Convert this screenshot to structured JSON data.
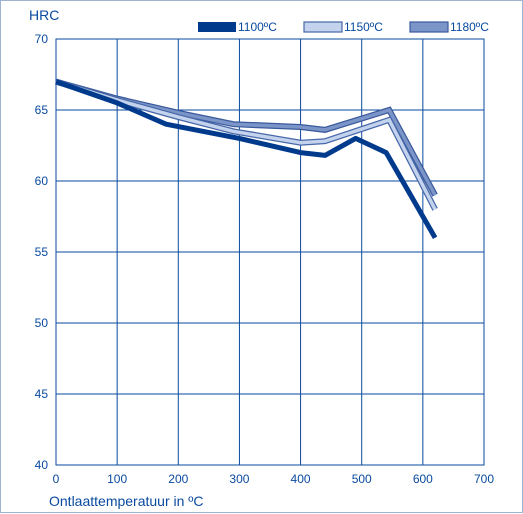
{
  "chart_data": {
    "type": "line",
    "title": "",
    "xlabel": "Ontlaattemperatuur in ºC",
    "ylabel": "HRC",
    "xlim": [
      0,
      700
    ],
    "ylim": [
      40,
      70
    ],
    "xticks": [
      0,
      100,
      200,
      300,
      400,
      500,
      600,
      700
    ],
    "yticks": [
      40,
      45,
      50,
      55,
      60,
      65,
      70
    ],
    "grid": true,
    "legend_position": "top-right",
    "series": [
      {
        "name": "1100ºC",
        "color": "#003a8c",
        "outline": "#003a8c",
        "x": [
          0,
          100,
          180,
          300,
          400,
          440,
          490,
          540,
          620
        ],
        "y": [
          67,
          65.5,
          64,
          63,
          62,
          61.8,
          63,
          62,
          56
        ]
      },
      {
        "name": "1150ºC",
        "color": "#c3d3ee",
        "outline": "#4767a8",
        "x": [
          0,
          100,
          200,
          290,
          400,
          440,
          545,
          620
        ],
        "y": [
          67,
          65.7,
          64.5,
          63.5,
          62.7,
          62.8,
          64.3,
          58
        ]
      },
      {
        "name": "1180ºC",
        "color": "#7b95c9",
        "outline": "#3a5a9c",
        "x": [
          0,
          100,
          200,
          290,
          400,
          440,
          545,
          620
        ],
        "y": [
          67,
          65.8,
          64.8,
          64,
          63.8,
          63.6,
          65,
          59
        ]
      }
    ]
  }
}
